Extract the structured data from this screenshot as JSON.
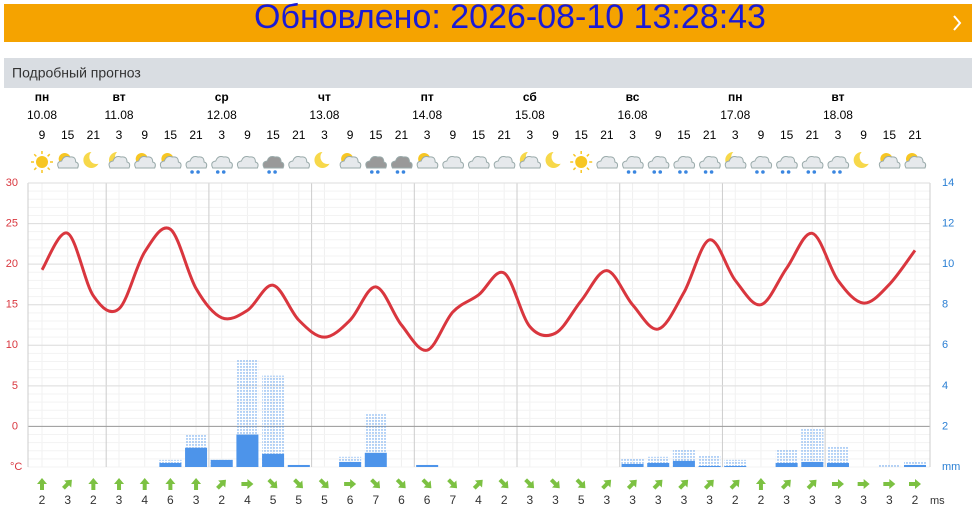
{
  "banner": {
    "text": "Обновлено: 2026-08-10 13:28:43"
  },
  "section": {
    "title": "Подробный прогноз"
  },
  "chart_data": {
    "type": "weather",
    "days": [
      {
        "name": "пн",
        "date": "10.08"
      },
      {
        "name": "вт",
        "date": "11.08"
      },
      {
        "name": "ср",
        "date": "12.08"
      },
      {
        "name": "чт",
        "date": "13.08"
      },
      {
        "name": "пт",
        "date": "14.08"
      },
      {
        "name": "сб",
        "date": "15.08"
      },
      {
        "name": "вс",
        "date": "16.08"
      },
      {
        "name": "пн",
        "date": "17.08"
      },
      {
        "name": "вт",
        "date": "18.08"
      }
    ],
    "times": [
      9,
      15,
      21,
      3,
      9,
      15,
      21,
      3,
      9,
      15,
      21,
      3,
      9,
      15,
      21,
      3,
      9,
      15,
      21,
      3,
      9,
      15,
      21,
      3,
      9,
      15,
      21,
      3,
      9,
      15,
      21,
      3,
      9,
      15,
      21
    ],
    "temperature": {
      "color": "#d9363e",
      "values": [
        19.3,
        23.8,
        16.1,
        14.5,
        21.5,
        24.3,
        17,
        13.4,
        14.3,
        17.4,
        13.1,
        11,
        13.1,
        17.2,
        12.5,
        9.4,
        14.1,
        16.2,
        18.9,
        12.3,
        11.5,
        15.5,
        19.2,
        15,
        12,
        16.5,
        23,
        18,
        15,
        19.5,
        23.8,
        18,
        15.2,
        17.5,
        21.7
      ]
    },
    "precipitation": {
      "color": "#4d94ea",
      "values": [
        0,
        0,
        0,
        0,
        0,
        0.2,
        0.95,
        0.35,
        1.6,
        0.65,
        0.1,
        0,
        0.25,
        0.7,
        0,
        0.1,
        0,
        0,
        0,
        0,
        0,
        0,
        0,
        0.15,
        0.2,
        0.3,
        0.05,
        0.05,
        0,
        0.2,
        0.25,
        0.2,
        0,
        0,
        0.1
      ]
    },
    "precipitation_max": {
      "color": "#4d94ea",
      "values": [
        0,
        0,
        0,
        0,
        0,
        0.35,
        1.6,
        0.35,
        5.3,
        4.5,
        0.1,
        0,
        0.5,
        2.6,
        0,
        0.1,
        0,
        0,
        0,
        0,
        0,
        0,
        0,
        0.4,
        0.5,
        0.85,
        0.55,
        0.35,
        0,
        0.85,
        1.9,
        1.0,
        0,
        0.1,
        0.3
      ]
    },
    "ylim": [
      -5,
      30
    ],
    "yticks": [
      0,
      5,
      10,
      15,
      20,
      25,
      30
    ],
    "y_unit": "°C",
    "y2lim": [
      0,
      14
    ],
    "y2ticks": [
      2,
      4,
      6,
      8,
      10,
      12,
      14
    ],
    "y2_unit": "mm",
    "wind": {
      "values": [
        2,
        3,
        2,
        3,
        4,
        6,
        3,
        2,
        4,
        5,
        5,
        5,
        6,
        7,
        6,
        6,
        7,
        4,
        2,
        3,
        3,
        5,
        3,
        3,
        3,
        3,
        3,
        2,
        2,
        3,
        3,
        3,
        3,
        3,
        2
      ],
      "direction": [
        0,
        45,
        0,
        0,
        0,
        0,
        0,
        45,
        90,
        135,
        135,
        135,
        90,
        135,
        135,
        135,
        135,
        45,
        135,
        135,
        135,
        135,
        45,
        45,
        45,
        45,
        45,
        45,
        0,
        45,
        45,
        90,
        90,
        90,
        90
      ],
      "unit": "ms",
      "color": "#7cc142"
    }
  }
}
